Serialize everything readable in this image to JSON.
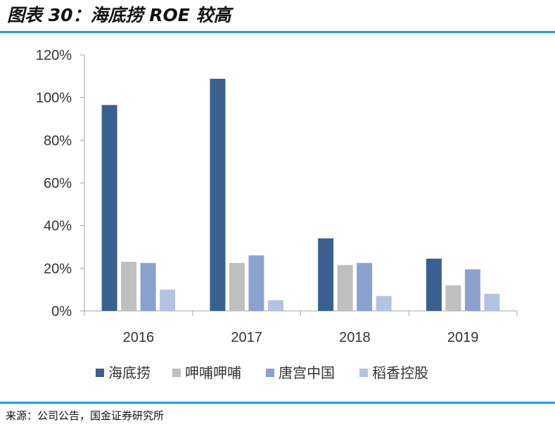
{
  "figure": {
    "title": "图表 30：海底捞 ROE 较高",
    "source": "来源：公司公告，国金证券研究所",
    "rule_color": "#1F9FD9"
  },
  "chart_data": {
    "type": "bar",
    "title": "",
    "xlabel": "",
    "ylabel": "",
    "categories": [
      "2016",
      "2017",
      "2018",
      "2019"
    ],
    "ylim": [
      0,
      120
    ],
    "yticks": [
      0,
      20,
      40,
      60,
      80,
      100,
      120
    ],
    "ytick_labels": [
      "0%",
      "20%",
      "40%",
      "60%",
      "80%",
      "100%",
      "120%"
    ],
    "grid": false,
    "legend_position": "bottom",
    "series": [
      {
        "name": "海底捞",
        "color": "#3A6091",
        "values": [
          96.5,
          108.8,
          34.0,
          24.5
        ]
      },
      {
        "name": "呷哺呷哺",
        "color": "#BFBFBF",
        "values": [
          23.0,
          22.5,
          21.5,
          12.0
        ]
      },
      {
        "name": "唐宫中国",
        "color": "#8BA2CF",
        "values": [
          22.5,
          26.0,
          22.5,
          19.5
        ]
      },
      {
        "name": "稻香控股",
        "color": "#B4C2E3",
        "values": [
          10.0,
          5.0,
          7.0,
          8.0
        ]
      }
    ]
  }
}
